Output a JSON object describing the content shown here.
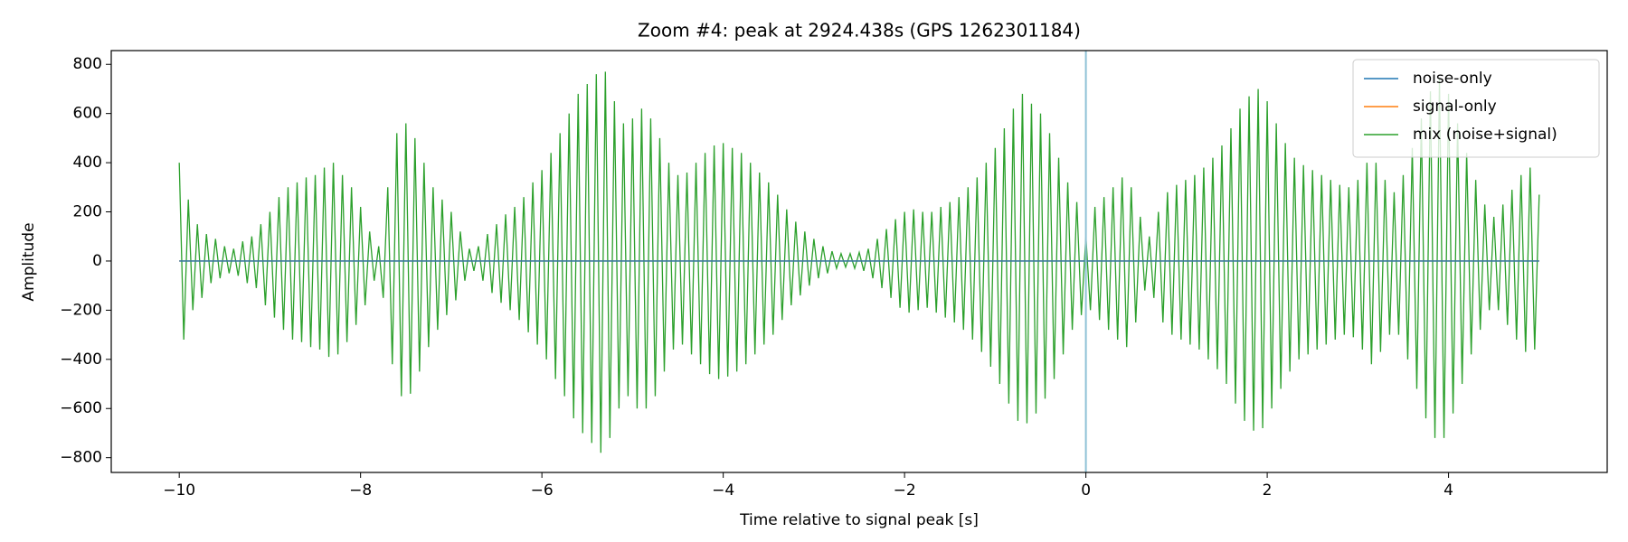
{
  "chart_data": {
    "type": "line",
    "title": "Zoom #4: peak at 2924.438s (GPS 1262301184)",
    "xlabel": "Time relative to signal peak [s]",
    "ylabel": "Amplitude",
    "xlim": [
      -10.75,
      5.75
    ],
    "ylim": [
      -860,
      856
    ],
    "xticks": [
      {
        "value": -10,
        "label": "−10"
      },
      {
        "value": -8,
        "label": "−8"
      },
      {
        "value": -6,
        "label": "−6"
      },
      {
        "value": -4,
        "label": "−4"
      },
      {
        "value": -2,
        "label": "−2"
      },
      0,
      2,
      4
    ],
    "yticks": [
      {
        "value": -800,
        "label": "−800"
      },
      {
        "value": -600,
        "label": "−600"
      },
      {
        "value": -400,
        "label": "−400"
      },
      {
        "value": -200,
        "label": "−200"
      },
      0,
      200,
      400,
      600,
      800
    ],
    "vline": 0,
    "vline_color": "#8fc1d6",
    "legend": "upper right",
    "series": [
      {
        "name": "noise-only",
        "color": "#1f77b4",
        "x": [
          -10,
          5
        ],
        "values": [
          0,
          0
        ]
      },
      {
        "name": "signal-only",
        "color": "#ff7f0e",
        "x": [
          -10,
          5
        ],
        "values": [
          0,
          0
        ]
      },
      {
        "name": "mix (noise+signal)",
        "color": "#2ca02c",
        "x": [
          -10,
          -9.95,
          -9.9,
          -9.85,
          -9.8,
          -9.75,
          -9.7,
          -9.65,
          -9.6,
          -9.55,
          -9.5,
          -9.45,
          -9.4,
          -9.35,
          -9.3,
          -9.25,
          -9.2,
          -9.15,
          -9.1,
          -9.05,
          -9,
          -8.95,
          -8.9,
          -8.85,
          -8.8,
          -8.75,
          -8.7,
          -8.65,
          -8.6,
          -8.55,
          -8.5,
          -8.45,
          -8.4,
          -8.35,
          -8.3,
          -8.25,
          -8.2,
          -8.15,
          -8.1,
          -8.05,
          -8,
          -7.95,
          -7.9,
          -7.85,
          -7.8,
          -7.75,
          -7.7,
          -7.65,
          -7.6,
          -7.55,
          -7.5,
          -7.45,
          -7.4,
          -7.35,
          -7.3,
          -7.25,
          -7.2,
          -7.15,
          -7.1,
          -7.05,
          -7,
          -6.95,
          -6.9,
          -6.85,
          -6.8,
          -6.75,
          -6.7,
          -6.65,
          -6.6,
          -6.55,
          -6.5,
          -6.45,
          -6.4,
          -6.35,
          -6.3,
          -6.25,
          -6.2,
          -6.15,
          -6.1,
          -6.05,
          -6,
          -5.95,
          -5.9,
          -5.85,
          -5.8,
          -5.75,
          -5.7,
          -5.65,
          -5.6,
          -5.55,
          -5.5,
          -5.45,
          -5.4,
          -5.35,
          -5.3,
          -5.25,
          -5.2,
          -5.15,
          -5.1,
          -5.05,
          -5,
          -4.95,
          -4.9,
          -4.85,
          -4.8,
          -4.75,
          -4.7,
          -4.65,
          -4.6,
          -4.55,
          -4.5,
          -4.45,
          -4.4,
          -4.35,
          -4.3,
          -4.25,
          -4.2,
          -4.15,
          -4.1,
          -4.05,
          -4,
          -3.95,
          -3.9,
          -3.85,
          -3.8,
          -3.75,
          -3.7,
          -3.65,
          -3.6,
          -3.55,
          -3.5,
          -3.45,
          -3.4,
          -3.35,
          -3.3,
          -3.25,
          -3.2,
          -3.15,
          -3.1,
          -3.05,
          -3,
          -2.95,
          -2.9,
          -2.85,
          -2.8,
          -2.75,
          -2.7,
          -2.65,
          -2.6,
          -2.55,
          -2.5,
          -2.45,
          -2.4,
          -2.35,
          -2.3,
          -2.25,
          -2.2,
          -2.15,
          -2.1,
          -2.05,
          -2,
          -1.95,
          -1.9,
          -1.85,
          -1.8,
          -1.75,
          -1.7,
          -1.65,
          -1.6,
          -1.55,
          -1.5,
          -1.45,
          -1.4,
          -1.35,
          -1.3,
          -1.25,
          -1.2,
          -1.15,
          -1.1,
          -1.05,
          -1,
          -0.95,
          -0.9,
          -0.85,
          -0.8,
          -0.75,
          -0.7,
          -0.65,
          -0.6,
          -0.55,
          -0.5,
          -0.45,
          -0.4,
          -0.35,
          -0.3,
          -0.25,
          -0.2,
          -0.15,
          -0.1,
          -0.05,
          0,
          0.05,
          0.1,
          0.15,
          0.2,
          0.25,
          0.3,
          0.35,
          0.4,
          0.45,
          0.5,
          0.55,
          0.6,
          0.65,
          0.7,
          0.75,
          0.8,
          0.85,
          0.9,
          0.95,
          1,
          1.05,
          1.1,
          1.15,
          1.2,
          1.25,
          1.3,
          1.35,
          1.4,
          1.45,
          1.5,
          1.55,
          1.6,
          1.65,
          1.7,
          1.75,
          1.8,
          1.85,
          1.9,
          1.95,
          2,
          2.05,
          2.1,
          2.15,
          2.2,
          2.25,
          2.3,
          2.35,
          2.4,
          2.45,
          2.5,
          2.55,
          2.6,
          2.65,
          2.7,
          2.75,
          2.8,
          2.85,
          2.9,
          2.95,
          3,
          3.05,
          3.1,
          3.15,
          3.2,
          3.25,
          3.3,
          3.35,
          3.4,
          3.45,
          3.5,
          3.55,
          3.6,
          3.65,
          3.7,
          3.75,
          3.8,
          3.85,
          3.9,
          3.95,
          4,
          4.05,
          4.1,
          4.15,
          4.2,
          4.25,
          4.3,
          4.35,
          4.4,
          4.45,
          4.5,
          4.55,
          4.6,
          4.65,
          4.7,
          4.75,
          4.8,
          4.85,
          4.9,
          4.95,
          5
        ],
        "values": [
          400,
          -320,
          250,
          -200,
          150,
          -150,
          110,
          -90,
          90,
          -70,
          60,
          -50,
          50,
          -60,
          80,
          -90,
          100,
          -110,
          150,
          -180,
          200,
          -230,
          260,
          -280,
          300,
          -320,
          320,
          -330,
          340,
          -350,
          350,
          -360,
          380,
          -390,
          400,
          -380,
          350,
          -330,
          300,
          -260,
          220,
          -180,
          120,
          -80,
          60,
          -150,
          300,
          -420,
          520,
          -550,
          560,
          -540,
          500,
          -450,
          400,
          -350,
          300,
          -280,
          250,
          -220,
          200,
          -160,
          120,
          -80,
          50,
          -40,
          60,
          -80,
          110,
          -130,
          150,
          -170,
          190,
          -200,
          220,
          -240,
          260,
          -290,
          320,
          -340,
          370,
          -400,
          440,
          -480,
          520,
          -550,
          600,
          -640,
          680,
          -700,
          720,
          -740,
          760,
          -780,
          770,
          -720,
          650,
          -600,
          560,
          -550,
          580,
          -600,
          620,
          -600,
          580,
          -550,
          500,
          -450,
          400,
          -360,
          350,
          -340,
          360,
          -380,
          400,
          -420,
          440,
          -460,
          470,
          -480,
          480,
          -470,
          460,
          -450,
          440,
          -420,
          400,
          -380,
          360,
          -340,
          320,
          -300,
          270,
          -240,
          210,
          -180,
          160,
          -140,
          120,
          -100,
          90,
          -70,
          60,
          -50,
          40,
          -30,
          30,
          -25,
          30,
          -30,
          35,
          -40,
          50,
          -70,
          90,
          -110,
          130,
          -150,
          170,
          -190,
          200,
          -210,
          210,
          -200,
          200,
          -190,
          200,
          -210,
          220,
          -230,
          240,
          -250,
          260,
          -280,
          300,
          -320,
          340,
          -370,
          400,
          -430,
          460,
          -500,
          540,
          -580,
          620,
          -650,
          680,
          -660,
          640,
          -620,
          600,
          -560,
          520,
          -480,
          420,
          -380,
          320,
          -280,
          240,
          -220,
          100,
          -200,
          220,
          -240,
          260,
          -280,
          300,
          -320,
          340,
          -350,
          300,
          -250,
          180,
          -120,
          100,
          -150,
          200,
          -250,
          280,
          -300,
          310,
          -320,
          330,
          -340,
          350,
          -360,
          380,
          -400,
          420,
          -440,
          470,
          -500,
          540,
          -580,
          620,
          -650,
          670,
          -690,
          700,
          -680,
          650,
          -600,
          560,
          -520,
          480,
          -450,
          420,
          -400,
          390,
          -380,
          370,
          -360,
          350,
          -340,
          330,
          -320,
          310,
          -300,
          300,
          -310,
          330,
          -360,
          400,
          -420,
          400,
          -370,
          330,
          -300,
          280,
          -300,
          350,
          -400,
          460,
          -520,
          580,
          -640,
          690,
          -720,
          740,
          -720,
          680,
          -620,
          560,
          -500,
          440,
          -380,
          330,
          -280,
          230,
          -200,
          180,
          -200,
          230,
          -260,
          290,
          -320,
          350,
          -370,
          380,
          -360,
          270
        ]
      }
    ]
  }
}
